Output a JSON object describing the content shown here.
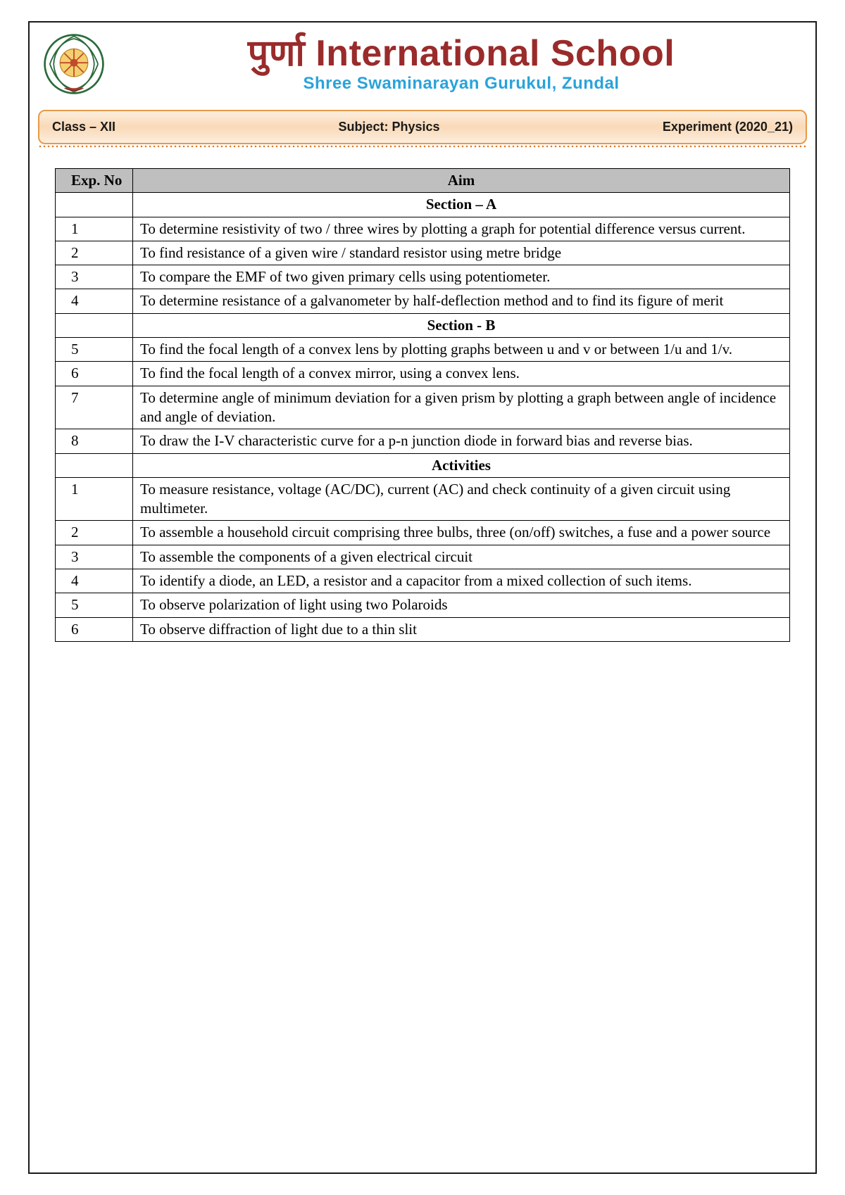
{
  "header": {
    "school_name_prefix": "पुर्णा",
    "school_name_main": "International School",
    "subtitle": "Shree Swaminarayan Gurukul, Zundal",
    "school_name_color": "#9a2b2b",
    "subtitle_color": "#2aa3d9"
  },
  "info_bar": {
    "left": "Class – XII",
    "center": "Subject:  Physics",
    "right": "Experiment (2020_21)",
    "bg_gradient_top": "#fdeedd",
    "bg_gradient_mid": "#f9d9b8",
    "border_color": "#e89a4a"
  },
  "table": {
    "header_bg": "#bfbfbf",
    "border_color": "#000000",
    "columns": [
      "Exp. No",
      "Aim"
    ],
    "rows": [
      {
        "type": "section",
        "no": "",
        "aim": "Section – A"
      },
      {
        "type": "data",
        "no": "1",
        "aim": "To determine resistivity of two / three wires by plotting a graph for potential difference versus current."
      },
      {
        "type": "data",
        "no": "2",
        "aim": "To find resistance of a given wire / standard resistor using metre bridge"
      },
      {
        "type": "data",
        "no": "3",
        "aim": "To compare the EMF of two given primary cells using potentiometer."
      },
      {
        "type": "data",
        "no": "4",
        "aim": "To determine resistance of a galvanometer by half-deflection method and to find its figure of merit"
      },
      {
        "type": "section",
        "no": "",
        "aim": "Section - B"
      },
      {
        "type": "data",
        "no": "5",
        "aim": "To find the focal length of a convex lens by plotting graphs between u and v or between 1/u and 1/v."
      },
      {
        "type": "data",
        "no": "6",
        "aim": "To find the focal length of a convex mirror, using a convex lens."
      },
      {
        "type": "data",
        "no": "7",
        "aim": "To determine angle of minimum deviation for a given prism by plotting a graph between angle of incidence and angle of deviation."
      },
      {
        "type": "data",
        "no": "8",
        "aim": "To draw the I-V characteristic curve for a p-n junction diode in forward bias and reverse bias."
      },
      {
        "type": "section",
        "no": "",
        "aim": "Activities"
      },
      {
        "type": "data",
        "no": "1",
        "aim": "To measure resistance, voltage (AC/DC), current (AC) and check continuity of a given circuit using multimeter."
      },
      {
        "type": "data",
        "no": "2",
        "aim": "To assemble a household circuit comprising three bulbs, three (on/off) switches, a fuse and a power source"
      },
      {
        "type": "data",
        "no": "3",
        "aim": "To assemble the components of a given electrical circuit"
      },
      {
        "type": "data",
        "no": "4",
        "aim": "To identify a diode, an LED, a resistor and a capacitor from a mixed collection of such items."
      },
      {
        "type": "data",
        "no": "5",
        "aim": "To observe polarization of light using two Polaroids"
      },
      {
        "type": "data",
        "no": "6",
        "aim": "To observe diffraction of light due to a thin slit"
      }
    ]
  }
}
